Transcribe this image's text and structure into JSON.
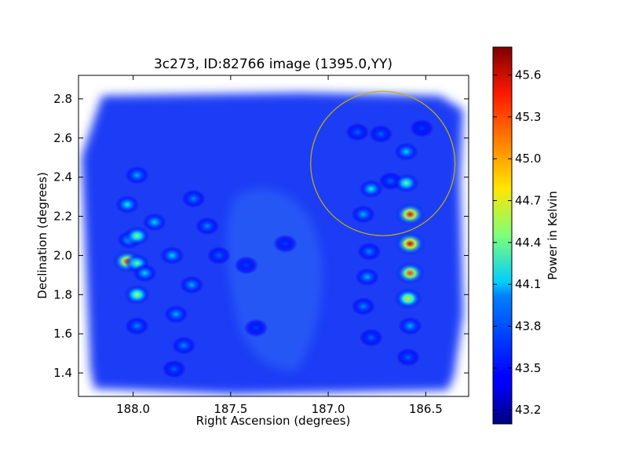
{
  "chart_data": {
    "type": "heatmap",
    "title": "3c273, ID:82766 image (1395.0,YY)",
    "xlabel": "Right Ascension (degrees)",
    "ylabel": "Declination (degrees)",
    "xlim": [
      188.28,
      186.28
    ],
    "ylim": [
      1.28,
      2.92
    ],
    "x_ticks": [
      188.0,
      187.5,
      187.0,
      186.5
    ],
    "x_tick_labels": [
      "188.0",
      "187.5",
      "187.0",
      "186.5"
    ],
    "y_ticks": [
      1.4,
      1.6,
      1.8,
      2.0,
      2.2,
      2.4,
      2.6,
      2.8
    ],
    "y_tick_labels": [
      "1.4",
      "1.6",
      "1.8",
      "2.0",
      "2.2",
      "2.4",
      "2.6",
      "2.8"
    ],
    "background_level": 43.38,
    "sources": [
      {
        "ra": 188.03,
        "dec": 1.97,
        "level": 45.3
      },
      {
        "ra": 187.98,
        "dec": 1.96,
        "level": 44.4
      },
      {
        "ra": 188.02,
        "dec": 2.08,
        "level": 44.0
      },
      {
        "ra": 188.03,
        "dec": 2.26,
        "level": 44.1
      },
      {
        "ra": 187.98,
        "dec": 2.1,
        "level": 44.5
      },
      {
        "ra": 187.98,
        "dec": 1.8,
        "level": 44.6
      },
      {
        "ra": 187.98,
        "dec": 2.41,
        "level": 43.9
      },
      {
        "ra": 187.94,
        "dec": 1.91,
        "level": 44.0
      },
      {
        "ra": 187.89,
        "dec": 2.17,
        "level": 44.0
      },
      {
        "ra": 187.8,
        "dec": 2.0,
        "level": 44.0
      },
      {
        "ra": 187.78,
        "dec": 1.7,
        "level": 43.9
      },
      {
        "ra": 187.74,
        "dec": 1.54,
        "level": 43.8
      },
      {
        "ra": 187.7,
        "dec": 1.85,
        "level": 43.9
      },
      {
        "ra": 187.69,
        "dec": 2.29,
        "level": 43.8
      },
      {
        "ra": 187.62,
        "dec": 2.15,
        "level": 43.8
      },
      {
        "ra": 187.56,
        "dec": 2.0,
        "level": 43.7
      },
      {
        "ra": 187.98,
        "dec": 1.64,
        "level": 43.8
      },
      {
        "ra": 187.79,
        "dec": 1.42,
        "level": 43.7
      },
      {
        "ra": 187.42,
        "dec": 1.95,
        "level": 43.6
      },
      {
        "ra": 187.37,
        "dec": 1.63,
        "level": 43.6
      },
      {
        "ra": 187.22,
        "dec": 2.06,
        "level": 43.6
      },
      {
        "ra": 186.78,
        "dec": 2.34,
        "level": 44.1
      },
      {
        "ra": 186.82,
        "dec": 2.21,
        "level": 43.9
      },
      {
        "ra": 186.79,
        "dec": 2.02,
        "level": 43.8
      },
      {
        "ra": 186.8,
        "dec": 1.89,
        "level": 43.9
      },
      {
        "ra": 186.82,
        "dec": 1.74,
        "level": 43.8
      },
      {
        "ra": 186.78,
        "dec": 1.58,
        "level": 43.7
      },
      {
        "ra": 186.68,
        "dec": 2.38,
        "level": 43.7
      },
      {
        "ra": 186.85,
        "dec": 2.63,
        "level": 43.7
      },
      {
        "ra": 186.73,
        "dec": 2.62,
        "level": 43.7
      },
      {
        "ra": 186.6,
        "dec": 2.53,
        "level": 44.0
      },
      {
        "ra": 186.6,
        "dec": 2.37,
        "level": 44.4
      },
      {
        "ra": 186.58,
        "dec": 2.21,
        "level": 45.5
      },
      {
        "ra": 186.58,
        "dec": 2.06,
        "level": 45.6
      },
      {
        "ra": 186.58,
        "dec": 1.91,
        "level": 45.3
      },
      {
        "ra": 186.59,
        "dec": 1.78,
        "level": 44.9
      },
      {
        "ra": 186.58,
        "dec": 1.64,
        "level": 43.9
      },
      {
        "ra": 186.59,
        "dec": 1.48,
        "level": 43.7
      },
      {
        "ra": 186.52,
        "dec": 2.65,
        "level": 43.6
      }
    ],
    "circle": {
      "ra": 186.72,
      "dec": 2.47,
      "radius_deg": 0.37,
      "color": "#c8b400"
    },
    "colorbar": {
      "label": "Power in Kelvin",
      "range": [
        43.1,
        45.8
      ],
      "ticks": [
        43.2,
        43.5,
        43.8,
        44.1,
        44.4,
        44.7,
        45.0,
        45.3,
        45.6
      ],
      "tick_labels": [
        "43.2",
        "43.5",
        "43.8",
        "44.1",
        "44.4",
        "44.7",
        "45.0",
        "45.3",
        "45.6"
      ],
      "colormap": "jet"
    }
  }
}
